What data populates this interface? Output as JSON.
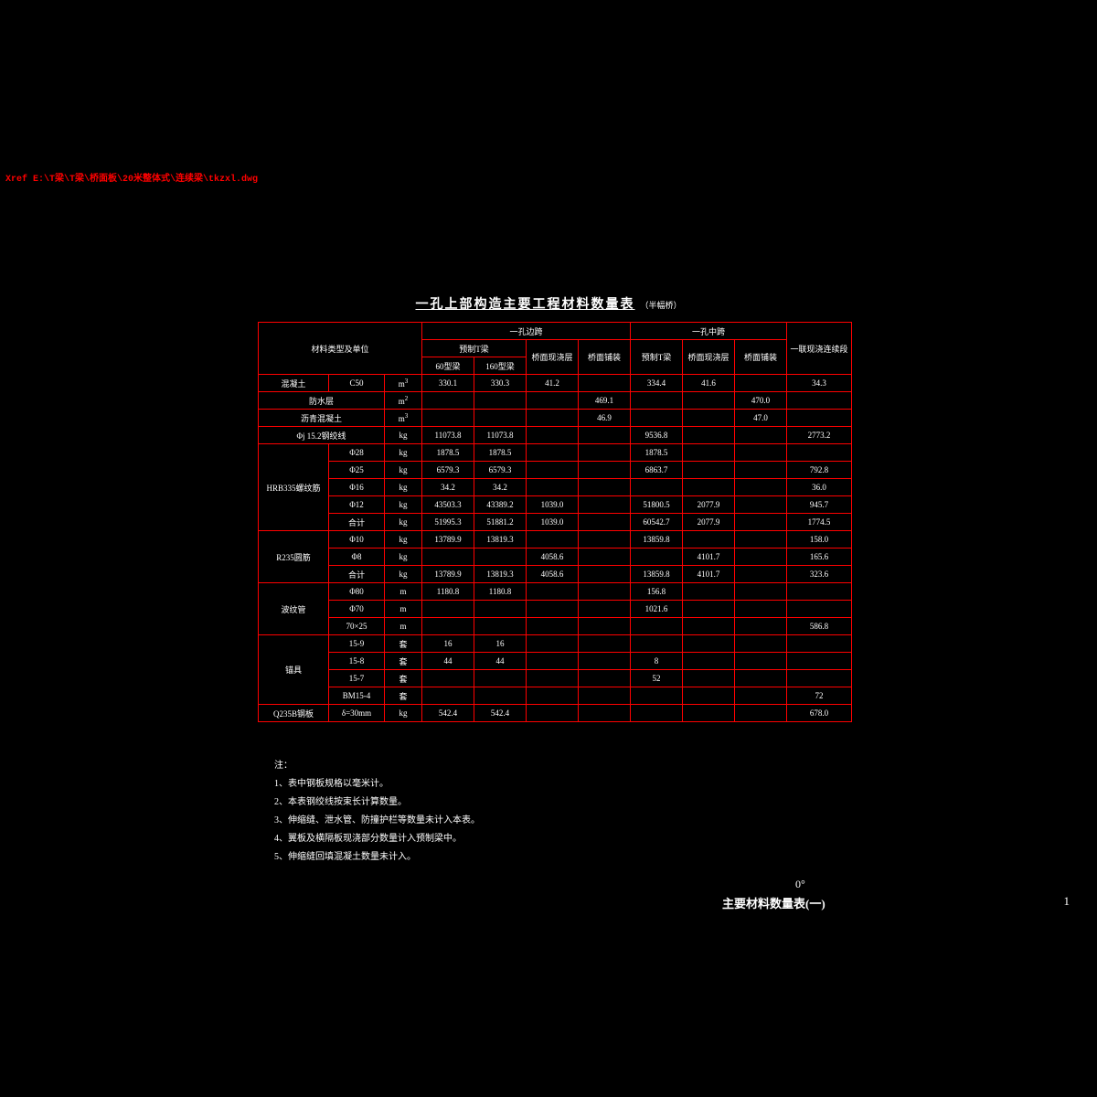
{
  "xref_error": "Xref E:\\T梁\\T梁\\桥面板\\20米整体式\\连续梁\\tkzxl.dwg",
  "title": {
    "main": "一孔上部构造主要工程材料数量表",
    "sub": "（半幅桥）"
  },
  "header": {
    "material_type_unit": "材料类型及单位",
    "span_side": "一孔边跨",
    "span_mid": "一孔中跨",
    "cast_block": "一联现浇连续段",
    "prefab_t": "预制T梁",
    "deck_cast": "桥面现浇层",
    "surface_pave": "桥面铺装",
    "t_beam_60": "60型梁",
    "t_beam_160": "160型梁"
  },
  "row_groups": [
    {
      "label": "混凝土",
      "sub": "C50",
      "unit": "m³",
      "cells": [
        "330.1",
        "330.3",
        "41.2",
        "",
        "334.4",
        "41.6",
        "",
        "34.3"
      ]
    },
    {
      "label": "防水层",
      "sub": "",
      "unit": "m²",
      "cells": [
        "",
        "",
        "",
        "469.1",
        "",
        "",
        "470.0",
        ""
      ]
    },
    {
      "label": "沥青混凝土",
      "sub": "",
      "unit": "m³",
      "cells": [
        "",
        "",
        "",
        "46.9",
        "",
        "",
        "47.0",
        ""
      ]
    },
    {
      "label": "Φj 15.2钢绞线",
      "sub": "",
      "unit": "kg",
      "cells": [
        "11073.8",
        "11073.8",
        "",
        "",
        "9536.8",
        "",
        "",
        "2773.2"
      ]
    },
    {
      "group": "HRB335螺纹筋",
      "rows": [
        {
          "sub": "Φ28",
          "unit": "kg",
          "cells": [
            "1878.5",
            "1878.5",
            "",
            "",
            "1878.5",
            "",
            "",
            ""
          ]
        },
        {
          "sub": "Φ25",
          "unit": "kg",
          "cells": [
            "6579.3",
            "6579.3",
            "",
            "",
            "6863.7",
            "",
            "",
            "792.8"
          ]
        },
        {
          "sub": "Φ16",
          "unit": "kg",
          "cells": [
            "34.2",
            "34.2",
            "",
            "",
            "",
            "",
            "",
            "36.0"
          ]
        },
        {
          "sub": "Φ12",
          "unit": "kg",
          "cells": [
            "43503.3",
            "43389.2",
            "1039.0",
            "",
            "51800.5",
            "2077.9",
            "",
            "945.7"
          ]
        },
        {
          "sub": "合计",
          "unit": "kg",
          "cells": [
            "51995.3",
            "51881.2",
            "1039.0",
            "",
            "60542.7",
            "2077.9",
            "",
            "1774.5"
          ]
        }
      ]
    },
    {
      "group": "R235圆筋",
      "rows": [
        {
          "sub": "Φ10",
          "unit": "kg",
          "cells": [
            "13789.9",
            "13819.3",
            "",
            "",
            "13859.8",
            "",
            "",
            "158.0"
          ]
        },
        {
          "sub": "Φ8",
          "unit": "kg",
          "cells": [
            "",
            "",
            "4058.6",
            "",
            "",
            "4101.7",
            "",
            "165.6"
          ]
        },
        {
          "sub": "合计",
          "unit": "kg",
          "cells": [
            "13789.9",
            "13819.3",
            "4058.6",
            "",
            "13859.8",
            "4101.7",
            "",
            "323.6"
          ]
        }
      ]
    },
    {
      "group": "波纹管",
      "rows": [
        {
          "sub": "Φ80",
          "unit": "m",
          "cells": [
            "1180.8",
            "1180.8",
            "",
            "",
            "156.8",
            "",
            "",
            ""
          ]
        },
        {
          "sub": "Φ70",
          "unit": "m",
          "cells": [
            "",
            "",
            "",
            "",
            "1021.6",
            "",
            "",
            ""
          ]
        },
        {
          "sub": "70×25",
          "unit": "m",
          "cells": [
            "",
            "",
            "",
            "",
            "",
            "",
            "",
            "586.8"
          ]
        }
      ]
    },
    {
      "group": "锚具",
      "rows": [
        {
          "sub": "15-9",
          "unit": "套",
          "cells": [
            "16",
            "16",
            "",
            "",
            "",
            "",
            "",
            ""
          ]
        },
        {
          "sub": "15-8",
          "unit": "套",
          "cells": [
            "44",
            "44",
            "",
            "",
            "8",
            "",
            "",
            ""
          ]
        },
        {
          "sub": "15-7",
          "unit": "套",
          "cells": [
            "",
            "",
            "",
            "",
            "52",
            "",
            "",
            ""
          ]
        },
        {
          "sub": "BM15-4",
          "unit": "套",
          "cells": [
            "",
            "",
            "",
            "",
            "",
            "",
            "",
            "72"
          ]
        }
      ]
    },
    {
      "label": "Q235B钢板",
      "sub": "δ=30mm",
      "unit": "kg",
      "cells": [
        "542.4",
        "542.4",
        "",
        "",
        "",
        "",
        "",
        "678.0"
      ]
    }
  ],
  "col_widths": {
    "label": 76,
    "sub": 60,
    "unit": 40,
    "t60": 56,
    "t160": 56,
    "deck_s": 56,
    "pave_s": 56,
    "t_mid": 56,
    "deck_m": 56,
    "pave_m": 56,
    "cast": 70
  },
  "notes": {
    "header": "注：",
    "items": [
      "1、表中钢板规格以毫米计。",
      "2、本表钢绞线按束长计算数量。",
      "3、伸缩缝、泄水管、防撞护栏等数量未计入本表。",
      "4、翼板及横隔板现浇部分数量计入预制梁中。",
      "5、伸缩缝回填混凝土数量未计入。"
    ]
  },
  "footer": {
    "angle": "0°",
    "title": "主要材料数量表(一)",
    "page": "1"
  },
  "colors": {
    "bg": "#000000",
    "border": "#ff0000",
    "text": "#ffffff",
    "xref": "#ff0000"
  }
}
